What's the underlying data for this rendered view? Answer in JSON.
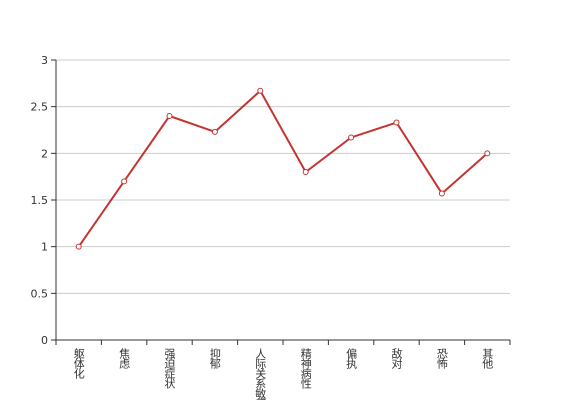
{
  "chart_data": {
    "type": "line",
    "categories": [
      "躯体化",
      "焦虑",
      "强迫症状",
      "抑郁",
      "人际关系敏感",
      "精神病性",
      "偏执",
      "敌对",
      "恐怖",
      "其他"
    ],
    "series": [
      {
        "color": "#c23531",
        "values": [
          1.0,
          1.7,
          2.4,
          2.23,
          2.67,
          1.8,
          2.17,
          2.33,
          1.57,
          2.0
        ]
      }
    ],
    "ylim": [
      0,
      3
    ],
    "yticks": [
      0,
      0.5,
      1,
      1.5,
      2,
      2.5,
      3
    ],
    "grid": true
  }
}
